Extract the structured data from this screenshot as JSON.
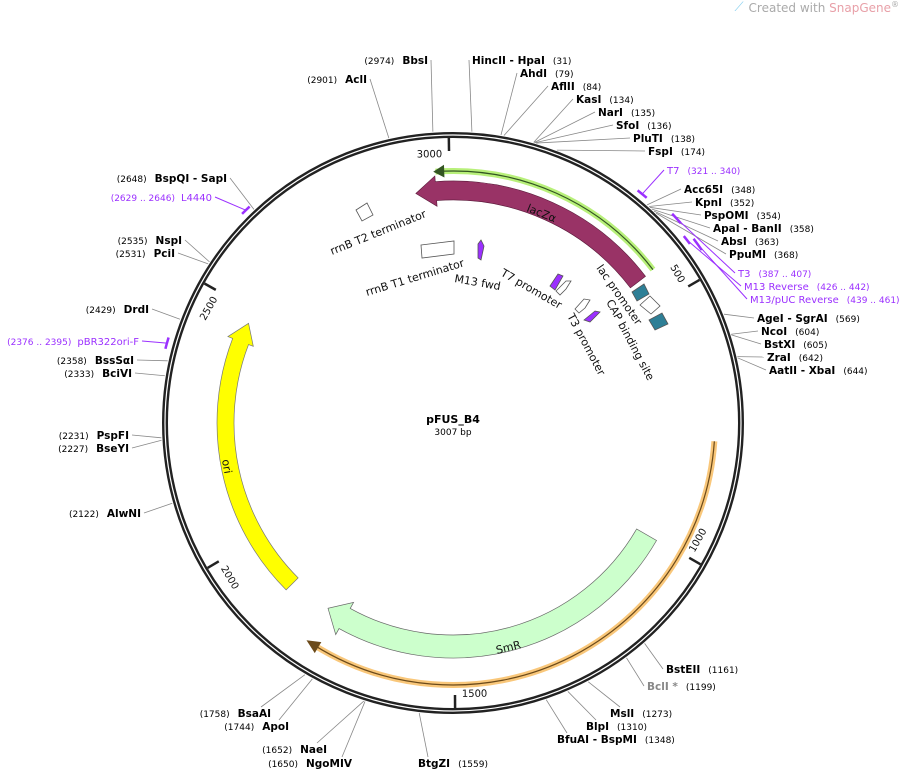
{
  "header": {
    "prefix": "Created with ",
    "brand": "SnapGene",
    "suffix": "®",
    "icon": "snapgene-logo-icon"
  },
  "plasmid": {
    "name": "pFUS_B4",
    "length": "3007 bp"
  },
  "ticks": [
    "500",
    "1000",
    "1500",
    "2000",
    "2500",
    "3000"
  ],
  "features": {
    "lacZa": "lacZα",
    "ori": "ori",
    "smr": "SmR",
    "rrnb_t2": "rrnB T2 terminator",
    "rrnb_t1": "rrnB T1 terminator",
    "m13_fwd": "M13 fwd",
    "t7_promoter": "T7 promoter",
    "t3_promoter": "T3 promoter",
    "lac_promoter": "lac promoter",
    "cap_site": "CAP binding site"
  },
  "enzymes": [
    {
      "name": "HincII  - HpaI",
      "pos": "(31)"
    },
    {
      "name": "AhdI",
      "pos": "(79)"
    },
    {
      "name": "AflII",
      "pos": "(84)"
    },
    {
      "name": "KasI",
      "pos": "(134)"
    },
    {
      "name": "NarI",
      "pos": "(135)"
    },
    {
      "name": "SfoI",
      "pos": "(136)"
    },
    {
      "name": "PluTI",
      "pos": "(138)"
    },
    {
      "name": "FspI",
      "pos": "(174)"
    },
    {
      "name": "Acc65I",
      "pos": "(348)"
    },
    {
      "name": "KpnI",
      "pos": "(352)"
    },
    {
      "name": "PspOMI",
      "pos": "(354)"
    },
    {
      "name": "ApaI  - BanII",
      "pos": "(358)"
    },
    {
      "name": "AbsI",
      "pos": "(363)"
    },
    {
      "name": "PpuMI",
      "pos": "(368)"
    },
    {
      "name": "AgeI  - SgrAI",
      "pos": "(569)"
    },
    {
      "name": "NcoI",
      "pos": "(604)"
    },
    {
      "name": "BstXI",
      "pos": "(605)"
    },
    {
      "name": "ZraI",
      "pos": "(642)"
    },
    {
      "name": "AatII  - XbaI",
      "pos": "(644)"
    },
    {
      "name": "BstEII",
      "pos": "(1161)"
    },
    {
      "name": "BclI *",
      "pos": "(1199)"
    },
    {
      "name": "MslI",
      "pos": "(1273)"
    },
    {
      "name": "BlpI",
      "pos": "(1310)"
    },
    {
      "name": "BfuAI  - BspMI",
      "pos": "(1348)"
    },
    {
      "name": "BtgZI",
      "pos": "(1559)"
    },
    {
      "name": "NgoMIV",
      "pos": "(1650)"
    },
    {
      "name": "NaeI",
      "pos": "(1652)"
    },
    {
      "name": "ApoI",
      "pos": "(1744)"
    },
    {
      "name": "BsaAI",
      "pos": "(1758)"
    },
    {
      "name": "AlwNI",
      "pos": "(2122)"
    },
    {
      "name": "BseYI",
      "pos": "(2227)"
    },
    {
      "name": "PspFI",
      "pos": "(2231)"
    },
    {
      "name": "BciVI",
      "pos": "(2333)"
    },
    {
      "name": "BssSαI",
      "pos": "(2358)"
    },
    {
      "name": "DrdI",
      "pos": "(2429)"
    },
    {
      "name": "PciI",
      "pos": "(2531)"
    },
    {
      "name": "NspI",
      "pos": "(2535)"
    },
    {
      "name": "BspQI  - SapI",
      "pos": "(2648)"
    },
    {
      "name": "AclI",
      "pos": "(2901)"
    },
    {
      "name": "BbsI",
      "pos": "(2974)"
    }
  ],
  "primers": [
    {
      "name": "T7",
      "range": "(321 .. 340)"
    },
    {
      "name": "T3",
      "range": "(387 .. 407)"
    },
    {
      "name": "M13 Reverse",
      "range": "(426 .. 442)"
    },
    {
      "name": "M13/pUC Reverse",
      "range": "(439 .. 461)"
    },
    {
      "name": "pBR322ori-F",
      "range": "(2376 .. 2395)"
    },
    {
      "name": "L4440",
      "range": "(2629 .. 2646)"
    }
  ],
  "colors": {
    "lacZa": "#993366",
    "ori": "#ffff00",
    "smr": "#ccffcc",
    "promoter": "#2e7f96",
    "primer": "#9b30ff",
    "orange": "#f9c77a",
    "highlight": "#b8f07a"
  }
}
